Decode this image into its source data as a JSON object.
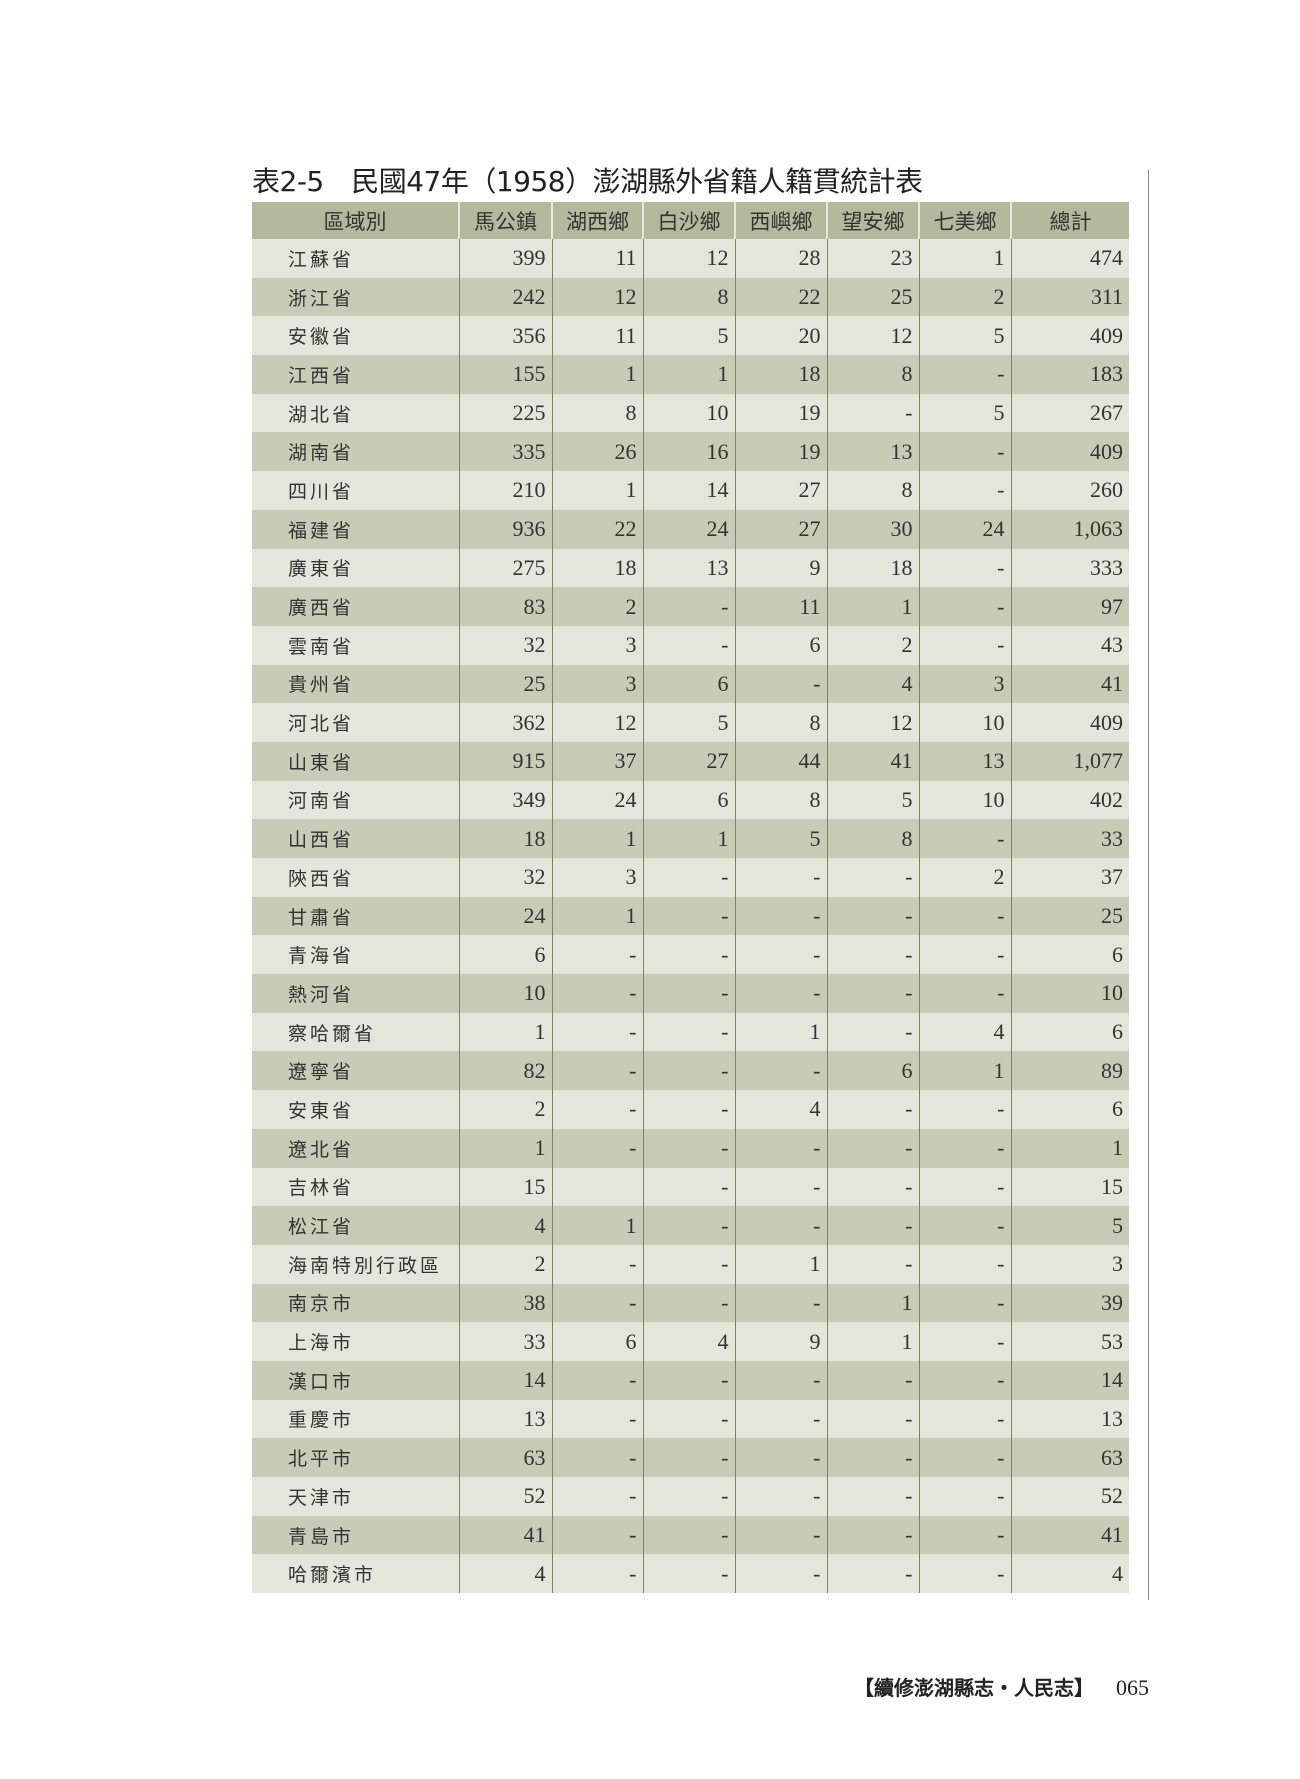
{
  "title": "表2-5　民國47年（1958）澎湖縣外省籍人籍貫統計表",
  "columns": [
    "區域別",
    "馬公鎮",
    "湖西鄉",
    "白沙鄉",
    "西嶼鄉",
    "望安鄉",
    "七美鄉",
    "總計"
  ],
  "rows": [
    [
      "江蘇省",
      "399",
      "11",
      "12",
      "28",
      "23",
      "1",
      "474"
    ],
    [
      "浙江省",
      "242",
      "12",
      "8",
      "22",
      "25",
      "2",
      "311"
    ],
    [
      "安徽省",
      "356",
      "11",
      "5",
      "20",
      "12",
      "5",
      "409"
    ],
    [
      "江西省",
      "155",
      "1",
      "1",
      "18",
      "8",
      "-",
      "183"
    ],
    [
      "湖北省",
      "225",
      "8",
      "10",
      "19",
      "-",
      "5",
      "267"
    ],
    [
      "湖南省",
      "335",
      "26",
      "16",
      "19",
      "13",
      "-",
      "409"
    ],
    [
      "四川省",
      "210",
      "1",
      "14",
      "27",
      "8",
      "-",
      "260"
    ],
    [
      "福建省",
      "936",
      "22",
      "24",
      "27",
      "30",
      "24",
      "1,063"
    ],
    [
      "廣東省",
      "275",
      "18",
      "13",
      "9",
      "18",
      "-",
      "333"
    ],
    [
      "廣西省",
      "83",
      "2",
      "-",
      "11",
      "1",
      "-",
      "97"
    ],
    [
      "雲南省",
      "32",
      "3",
      "-",
      "6",
      "2",
      "-",
      "43"
    ],
    [
      "貴州省",
      "25",
      "3",
      "6",
      "-",
      "4",
      "3",
      "41"
    ],
    [
      "河北省",
      "362",
      "12",
      "5",
      "8",
      "12",
      "10",
      "409"
    ],
    [
      "山東省",
      "915",
      "37",
      "27",
      "44",
      "41",
      "13",
      "1,077"
    ],
    [
      "河南省",
      "349",
      "24",
      "6",
      "8",
      "5",
      "10",
      "402"
    ],
    [
      "山西省",
      "18",
      "1",
      "1",
      "5",
      "8",
      "-",
      "33"
    ],
    [
      "陝西省",
      "32",
      "3",
      "-",
      "-",
      "-",
      "2",
      "37"
    ],
    [
      "甘肅省",
      "24",
      "1",
      "-",
      "-",
      "-",
      "-",
      "25"
    ],
    [
      "青海省",
      "6",
      "-",
      "-",
      "-",
      "-",
      "-",
      "6"
    ],
    [
      "熱河省",
      "10",
      "-",
      "-",
      "-",
      "-",
      "-",
      "10"
    ],
    [
      "察哈爾省",
      "1",
      "-",
      "-",
      "1",
      "-",
      "4",
      "6"
    ],
    [
      "遼寧省",
      "82",
      "-",
      "-",
      "-",
      "6",
      "1",
      "89"
    ],
    [
      "安東省",
      "2",
      "-",
      "-",
      "4",
      "-",
      "-",
      "6"
    ],
    [
      "遼北省",
      "1",
      "-",
      "-",
      "-",
      "-",
      "-",
      "1"
    ],
    [
      "吉林省",
      "15",
      "",
      "-",
      "-",
      "-",
      "-",
      "15"
    ],
    [
      "松江省",
      "4",
      "1",
      "-",
      "-",
      "-",
      "-",
      "5"
    ],
    [
      "海南特別行政區",
      "2",
      "-",
      "-",
      "1",
      "-",
      "-",
      "3"
    ],
    [
      "南京市",
      "38",
      "-",
      "-",
      "-",
      "1",
      "-",
      "39"
    ],
    [
      "上海市",
      "33",
      "6",
      "4",
      "9",
      "1",
      "-",
      "53"
    ],
    [
      "漢口市",
      "14",
      "-",
      "-",
      "-",
      "-",
      "-",
      "14"
    ],
    [
      "重慶市",
      "13",
      "-",
      "-",
      "-",
      "-",
      "-",
      "13"
    ],
    [
      "北平市",
      "63",
      "-",
      "-",
      "-",
      "-",
      "-",
      "63"
    ],
    [
      "天津市",
      "52",
      "-",
      "-",
      "-",
      "-",
      "-",
      "52"
    ],
    [
      "青島市",
      "41",
      "-",
      "-",
      "-",
      "-",
      "-",
      "41"
    ],
    [
      "哈爾濱市",
      "4",
      "-",
      "-",
      "-",
      "-",
      "-",
      "4"
    ]
  ],
  "footer": {
    "book": "【續修澎湖縣志・人民志】",
    "page": "065"
  },
  "colors": {
    "header": "#b4b89c",
    "row_light": "#e4e6dc",
    "row_dark": "#c8cbb6"
  }
}
